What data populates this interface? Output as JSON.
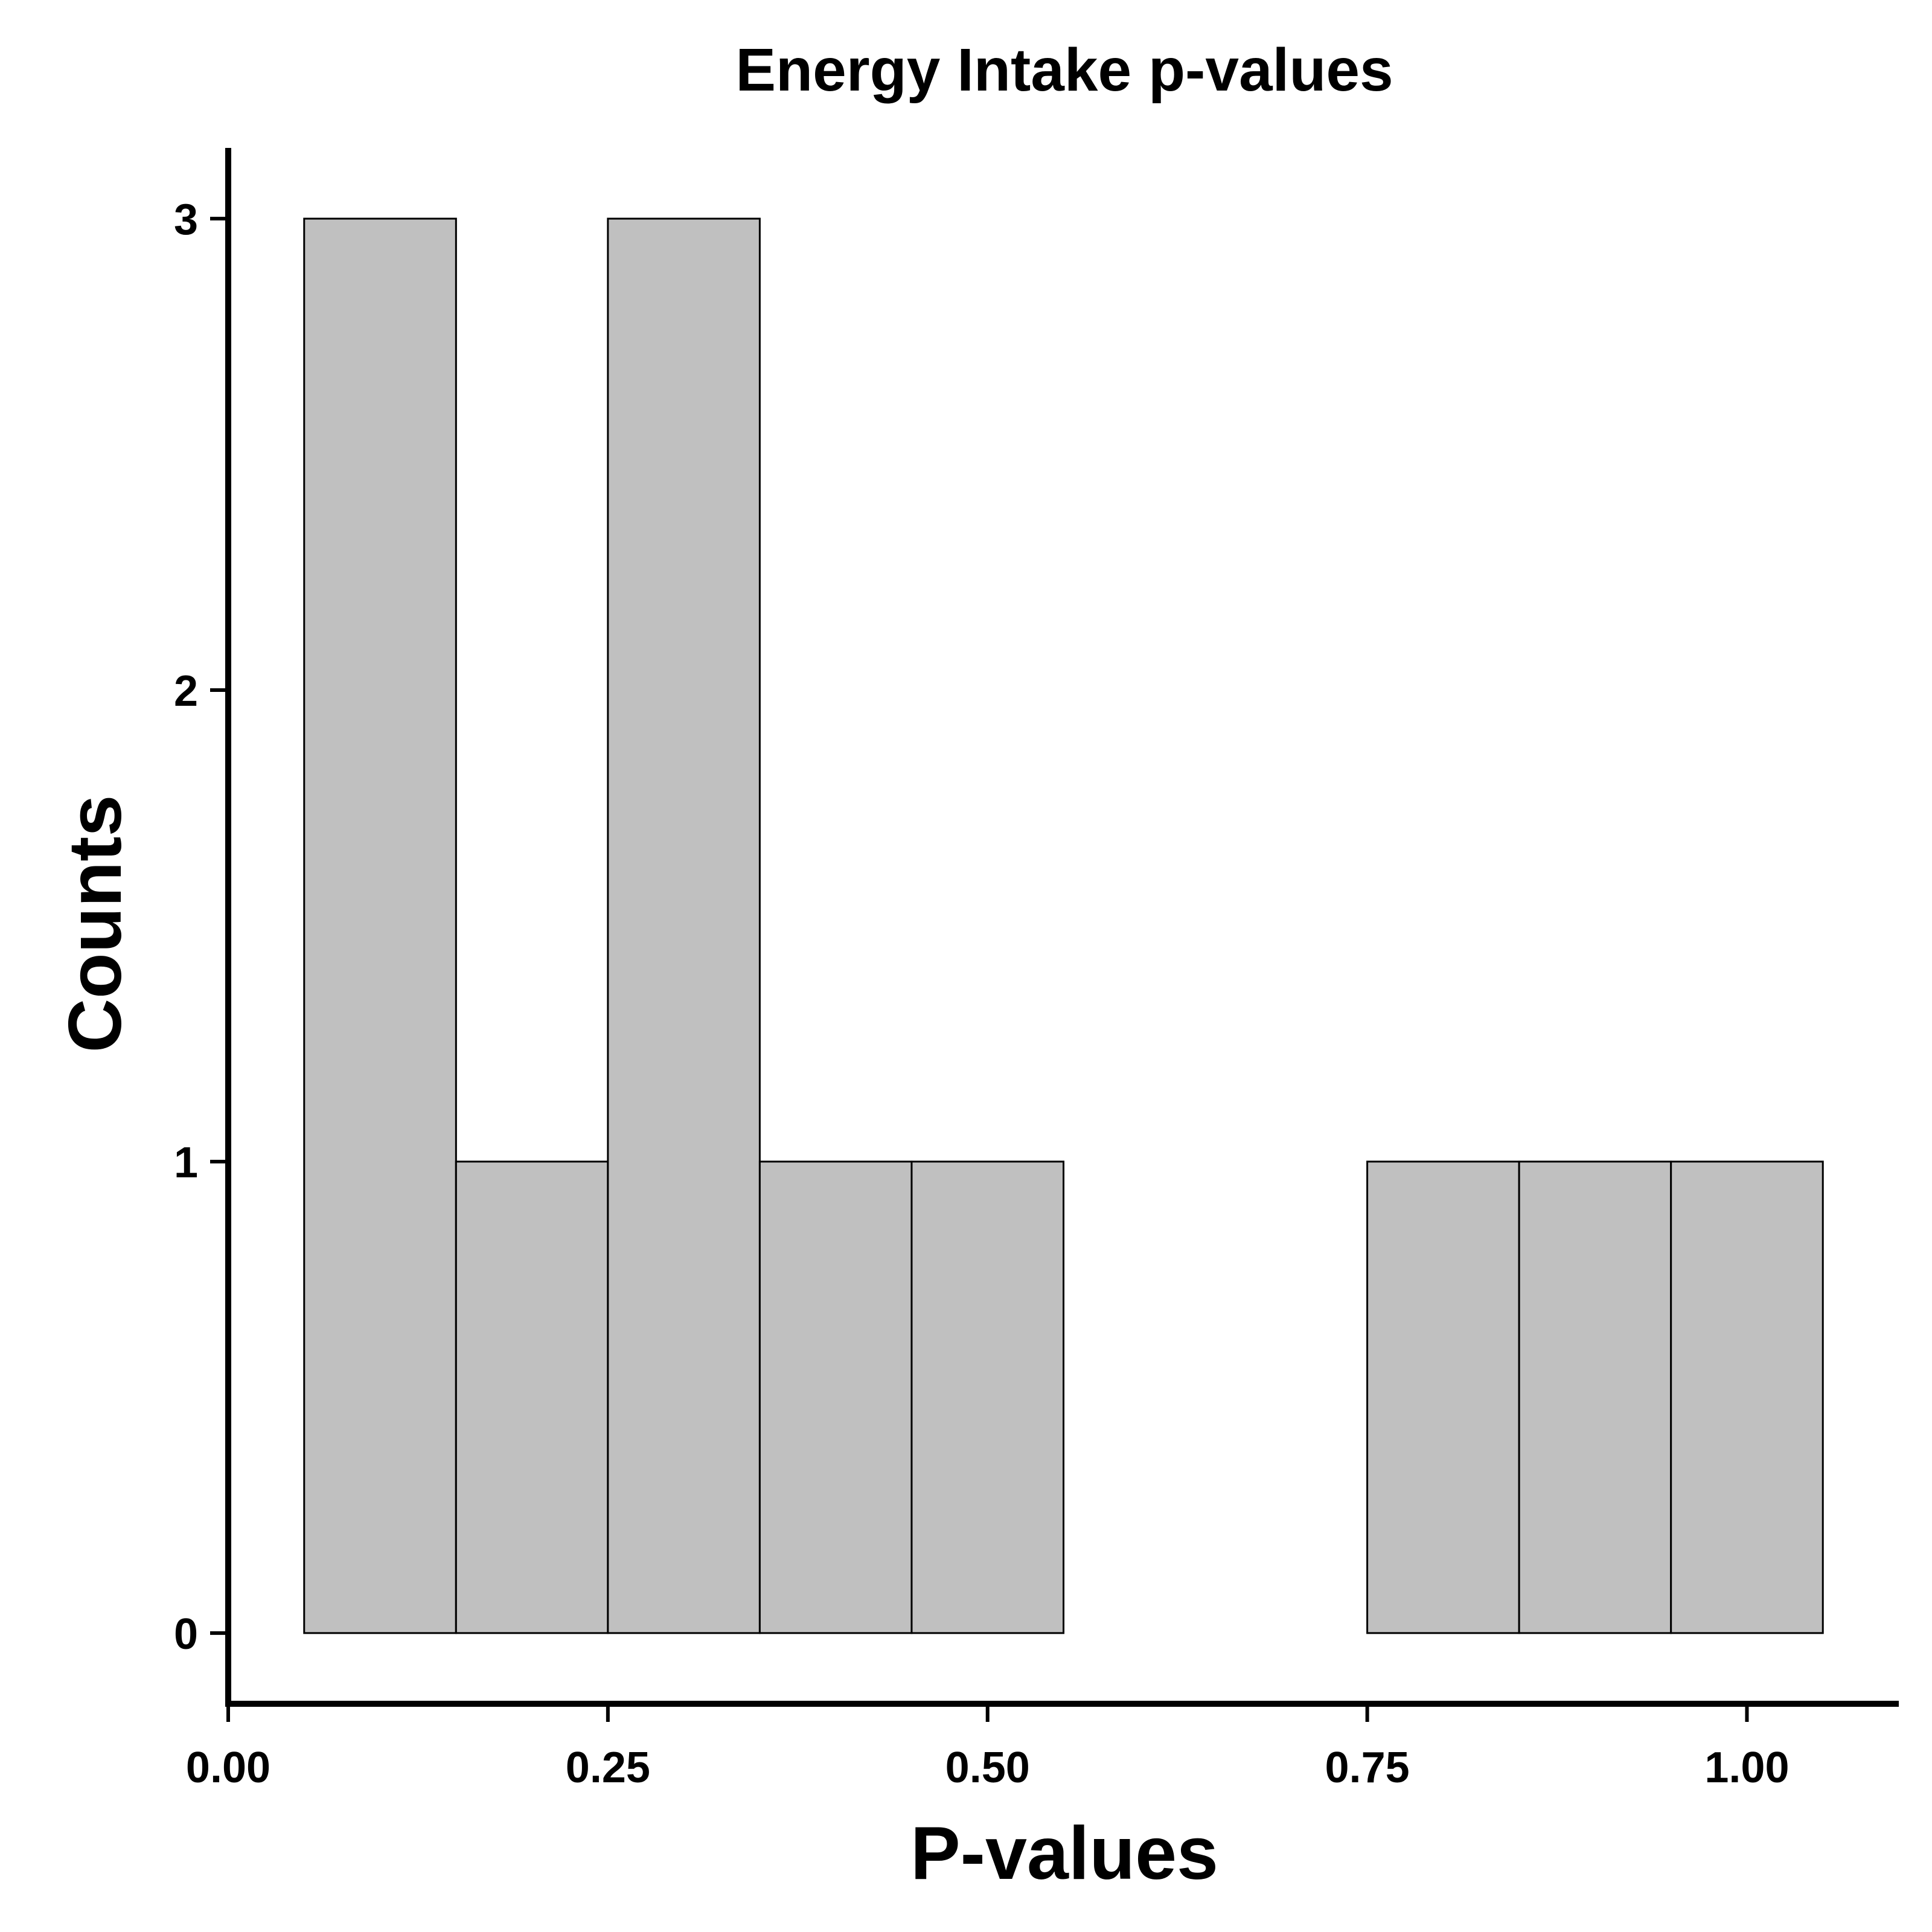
{
  "chart_data": {
    "type": "bar",
    "title": "Energy Intake p-values",
    "xlabel": "P-values",
    "ylabel": "Counts",
    "bin_width": 0.1,
    "bins": [
      {
        "start": 0.05,
        "end": 0.15,
        "count": 3
      },
      {
        "start": 0.15,
        "end": 0.25,
        "count": 1
      },
      {
        "start": 0.25,
        "end": 0.35,
        "count": 3
      },
      {
        "start": 0.35,
        "end": 0.45,
        "count": 1
      },
      {
        "start": 0.45,
        "end": 0.55,
        "count": 1
      },
      {
        "start": 0.55,
        "end": 0.65,
        "count": 0
      },
      {
        "start": 0.65,
        "end": 0.75,
        "count": 0
      },
      {
        "start": 0.75,
        "end": 0.85,
        "count": 1
      },
      {
        "start": 0.85,
        "end": 0.95,
        "count": 1
      },
      {
        "start": 0.95,
        "end": 1.05,
        "count": 1
      }
    ],
    "xlim": [
      0.0,
      1.1
    ],
    "ylim": [
      -0.15,
      3.15
    ],
    "x_ticks": [
      0.0,
      0.25,
      0.5,
      0.75,
      1.0
    ],
    "x_tick_labels": [
      "0.00",
      "0.25",
      "0.50",
      "0.75",
      "1.00"
    ],
    "y_ticks": [
      0,
      1,
      2,
      3
    ],
    "y_tick_labels": [
      "0",
      "1",
      "2",
      "3"
    ],
    "bar_color": "#c0c0c0",
    "grid": false,
    "legend": "none"
  }
}
